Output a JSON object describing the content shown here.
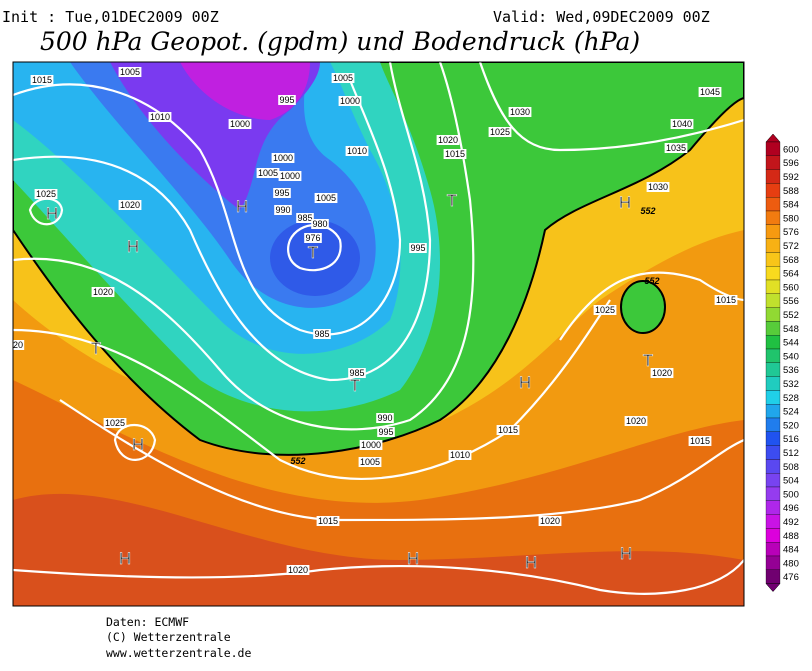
{
  "header": {
    "init": "Init : Tue,01DEC2009 00Z",
    "valid": "Valid: Wed,09DEC2009 00Z",
    "title": "500 hPa Geopot. (gpdm) und Bodendruck (hPa)"
  },
  "map": {
    "isobar_labels": [
      "1015",
      "1005",
      "1010",
      "1000",
      "995",
      "1005",
      "1000",
      "1010",
      "1000",
      "1005",
      "1000",
      "995",
      "990",
      "985",
      "980",
      "976",
      "1005",
      "1025",
      "1020",
      "1020",
      "20",
      "995",
      "985",
      "985",
      "990",
      "995",
      "1000",
      "1005",
      "1010",
      "1015",
      "1020",
      "1015",
      "1025",
      "1030",
      "1045",
      "1040",
      "1035",
      "1030",
      "1025",
      "1015",
      "1020",
      "1020",
      "1015",
      "1025",
      "1020",
      "1015",
      "1020"
    ],
    "pressure_centers": [
      "H",
      "H",
      "H",
      "T",
      "T",
      "T",
      "T",
      "H",
      "H",
      "H",
      "H",
      "H",
      "H",
      "T",
      "H"
    ],
    "contour_labels": [
      "552",
      "552",
      "552"
    ]
  },
  "colorbar": {
    "levels": [
      600,
      596,
      592,
      588,
      584,
      580,
      576,
      572,
      568,
      564,
      560,
      556,
      552,
      548,
      544,
      540,
      536,
      532,
      528,
      524,
      520,
      516,
      512,
      508,
      504,
      500,
      496,
      492,
      488,
      484,
      480,
      476
    ]
  },
  "footer": {
    "source": "Daten: ECMWF",
    "copyright": "(C) Wetterzentrale",
    "url": "www.wetterzentrale.de"
  }
}
